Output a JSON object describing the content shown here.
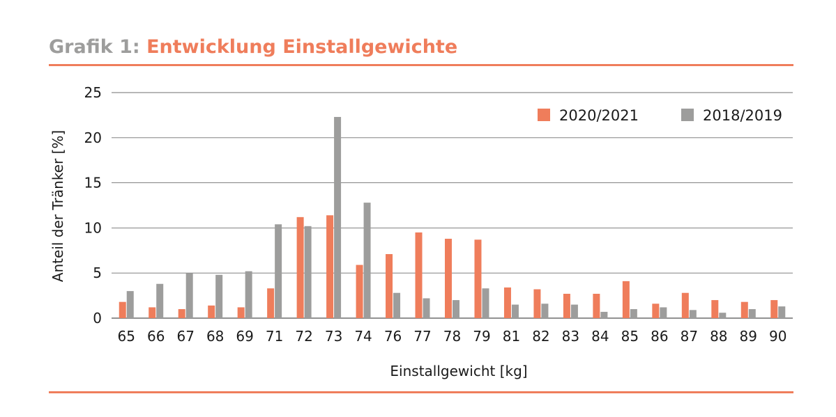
{
  "header": {
    "prefix": "Grafik 1:",
    "title": "Entwicklung Einstallgewichte"
  },
  "colors": {
    "accent": "#ef7d5b",
    "series_2020": "#ef7d5b",
    "series_2018": "#9d9d9c",
    "grid": "#6f6f6f"
  },
  "chart_data": {
    "type": "bar",
    "categories": [
      "65",
      "66",
      "67",
      "68",
      "69",
      "71",
      "72",
      "73",
      "74",
      "76",
      "77",
      "78",
      "79",
      "81",
      "82",
      "83",
      "84",
      "85",
      "86",
      "87",
      "88",
      "89",
      "90"
    ],
    "series": [
      {
        "name": "2020/2021",
        "color": "#ef7d5b",
        "values": [
          1.8,
          1.2,
          1.0,
          1.4,
          1.2,
          3.3,
          11.2,
          11.4,
          5.9,
          7.1,
          9.5,
          8.8,
          8.7,
          3.4,
          3.2,
          2.7,
          2.7,
          4.1,
          1.6,
          2.8,
          2.0,
          1.8,
          2.0
        ]
      },
      {
        "name": "2018/2019",
        "color": "#9d9d9c",
        "values": [
          3.0,
          3.8,
          5.0,
          4.8,
          5.2,
          10.4,
          10.2,
          22.3,
          12.8,
          2.8,
          2.2,
          2.0,
          3.3,
          1.5,
          1.6,
          1.5,
          0.7,
          1.0,
          1.2,
          0.9,
          0.6,
          1.0,
          1.3
        ]
      }
    ],
    "xlabel": "Einstallgewicht [kg]",
    "ylabel": "Anteil der Tränker [%]",
    "ylim": [
      0,
      25
    ],
    "yticks": [
      0,
      5,
      10,
      15,
      20,
      25
    ],
    "grid": true,
    "legend": "top-right"
  }
}
